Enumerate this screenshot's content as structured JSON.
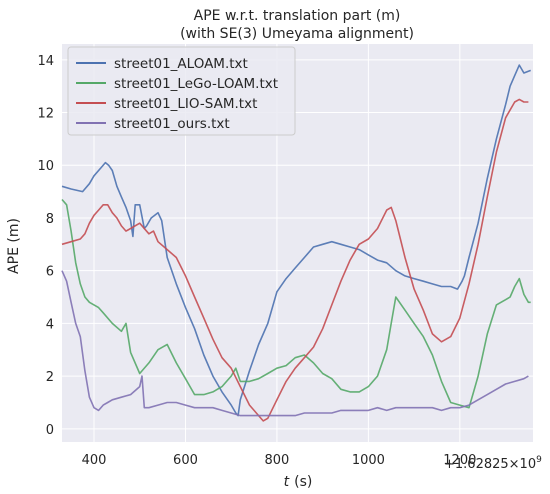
{
  "chart_data": {
    "type": "line",
    "title": "APE w.r.t. translation part (m)",
    "subtitle": "(with SE(3) Umeyama alignment)",
    "xlabel_italic": "t",
    "xlabel_unit": "(s)",
    "ylabel": "APE (m)",
    "x_offset_label": "+1.62825×10",
    "x_offset_exponent": "9",
    "xlim": [
      330,
      1360
    ],
    "ylim": [
      -0.5,
      14.6
    ],
    "xticks": [
      400,
      600,
      800,
      1000,
      1200
    ],
    "yticks": [
      0,
      2,
      4,
      6,
      8,
      10,
      12,
      14
    ],
    "grid": true,
    "legend_position": "top-left",
    "background_color": "#eaeaf2",
    "series": [
      {
        "name": "street01_ALOAM.txt",
        "color": "#4c72b0",
        "x": [
          330,
          350,
          375,
          390,
          400,
          415,
          425,
          432,
          440,
          450,
          460,
          470,
          480,
          485,
          490,
          500,
          510,
          515,
          525,
          540,
          548,
          560,
          580,
          600,
          620,
          640,
          660,
          680,
          700,
          710,
          715,
          720,
          740,
          760,
          780,
          800,
          820,
          840,
          860,
          880,
          900,
          920,
          940,
          960,
          980,
          1000,
          1020,
          1040,
          1060,
          1080,
          1100,
          1120,
          1140,
          1160,
          1180,
          1195,
          1205,
          1210,
          1220,
          1240,
          1260,
          1280,
          1300,
          1310,
          1320,
          1330,
          1340,
          1355
        ],
        "y": [
          9.2,
          9.1,
          9.0,
          9.3,
          9.6,
          9.9,
          10.1,
          10.0,
          9.8,
          9.2,
          8.8,
          8.4,
          7.9,
          7.3,
          8.5,
          8.5,
          7.6,
          7.7,
          8.0,
          8.2,
          7.9,
          6.5,
          5.5,
          4.6,
          3.8,
          2.8,
          2.0,
          1.4,
          0.9,
          0.6,
          0.5,
          1.1,
          2.2,
          3.2,
          4.0,
          5.2,
          5.7,
          6.1,
          6.5,
          6.9,
          7.0,
          7.1,
          7.0,
          6.9,
          6.8,
          6.6,
          6.4,
          6.3,
          6.0,
          5.8,
          5.7,
          5.6,
          5.5,
          5.4,
          5.4,
          5.3,
          5.6,
          5.8,
          6.5,
          7.8,
          9.5,
          11.0,
          12.3,
          13.0,
          13.4,
          13.8,
          13.5,
          13.6
        ]
      },
      {
        "name": "street01_LeGo-LOAM.txt",
        "color": "#55a868",
        "x": [
          330,
          340,
          350,
          360,
          370,
          380,
          390,
          400,
          410,
          420,
          440,
          460,
          470,
          480,
          500,
          520,
          540,
          550,
          560,
          580,
          600,
          620,
          640,
          660,
          680,
          700,
          710,
          720,
          740,
          760,
          780,
          800,
          820,
          840,
          860,
          880,
          900,
          920,
          940,
          960,
          980,
          1000,
          1020,
          1040,
          1050,
          1060,
          1080,
          1100,
          1120,
          1140,
          1160,
          1180,
          1200,
          1220,
          1230,
          1240,
          1260,
          1280,
          1300,
          1310,
          1320,
          1330,
          1340,
          1350,
          1355
        ],
        "y": [
          8.7,
          8.5,
          7.5,
          6.3,
          5.5,
          5.0,
          4.8,
          4.7,
          4.6,
          4.4,
          4.0,
          3.7,
          4.0,
          2.9,
          2.1,
          2.5,
          3.0,
          3.1,
          3.2,
          2.5,
          1.9,
          1.3,
          1.3,
          1.4,
          1.6,
          2.0,
          2.3,
          1.8,
          1.8,
          1.9,
          2.1,
          2.3,
          2.4,
          2.7,
          2.8,
          2.5,
          2.1,
          1.9,
          1.5,
          1.4,
          1.4,
          1.6,
          2.0,
          3.0,
          4.0,
          5.0,
          4.5,
          4.0,
          3.5,
          2.8,
          1.8,
          1.0,
          0.9,
          0.8,
          1.4,
          2.0,
          3.6,
          4.7,
          4.9,
          5.0,
          5.4,
          5.7,
          5.1,
          4.8,
          4.8
        ]
      },
      {
        "name": "street01_LIO-SAM.txt",
        "color": "#c44e52",
        "x": [
          330,
          350,
          370,
          380,
          390,
          400,
          410,
          420,
          430,
          440,
          450,
          460,
          470,
          480,
          500,
          520,
          530,
          540,
          560,
          580,
          600,
          620,
          640,
          660,
          680,
          700,
          720,
          740,
          760,
          770,
          780,
          800,
          820,
          840,
          860,
          880,
          900,
          920,
          940,
          960,
          980,
          1000,
          1020,
          1040,
          1050,
          1060,
          1070,
          1080,
          1100,
          1120,
          1140,
          1160,
          1180,
          1200,
          1220,
          1240,
          1260,
          1280,
          1300,
          1320,
          1330,
          1340,
          1350
        ],
        "y": [
          7.0,
          7.1,
          7.2,
          7.4,
          7.8,
          8.1,
          8.3,
          8.5,
          8.5,
          8.2,
          8.0,
          7.7,
          7.5,
          7.6,
          7.8,
          7.4,
          7.5,
          7.1,
          6.8,
          6.5,
          5.8,
          5.0,
          4.2,
          3.4,
          2.7,
          2.3,
          1.6,
          0.9,
          0.5,
          0.3,
          0.4,
          1.1,
          1.8,
          2.3,
          2.7,
          3.1,
          3.8,
          4.7,
          5.6,
          6.4,
          7.0,
          7.2,
          7.6,
          8.3,
          8.4,
          7.9,
          7.2,
          6.5,
          5.3,
          4.5,
          3.6,
          3.3,
          3.5,
          4.2,
          5.5,
          7.0,
          8.8,
          10.5,
          11.8,
          12.4,
          12.5,
          12.4,
          12.4
        ]
      },
      {
        "name": "street01_ours.txt",
        "color": "#8172b2",
        "x": [
          330,
          340,
          350,
          360,
          370,
          380,
          390,
          400,
          410,
          420,
          430,
          440,
          460,
          480,
          500,
          505,
          510,
          520,
          540,
          560,
          580,
          600,
          620,
          640,
          660,
          680,
          700,
          720,
          740,
          760,
          780,
          800,
          820,
          840,
          860,
          880,
          900,
          920,
          940,
          960,
          980,
          1000,
          1020,
          1040,
          1060,
          1080,
          1100,
          1120,
          1140,
          1160,
          1180,
          1200,
          1220,
          1240,
          1260,
          1280,
          1300,
          1320,
          1340,
          1350
        ],
        "y": [
          6.0,
          5.6,
          4.8,
          4.0,
          3.5,
          2.2,
          1.2,
          0.8,
          0.7,
          0.9,
          1.0,
          1.1,
          1.2,
          1.3,
          1.6,
          2.0,
          0.8,
          0.8,
          0.9,
          1.0,
          1.0,
          0.9,
          0.8,
          0.8,
          0.8,
          0.7,
          0.6,
          0.5,
          0.5,
          0.5,
          0.5,
          0.5,
          0.5,
          0.5,
          0.6,
          0.6,
          0.6,
          0.6,
          0.7,
          0.7,
          0.7,
          0.7,
          0.8,
          0.7,
          0.8,
          0.8,
          0.8,
          0.8,
          0.8,
          0.7,
          0.8,
          0.8,
          0.9,
          1.1,
          1.3,
          1.5,
          1.7,
          1.8,
          1.9,
          2.0
        ]
      }
    ]
  }
}
